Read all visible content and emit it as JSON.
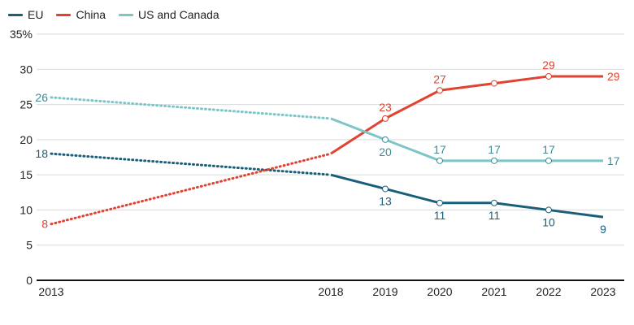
{
  "chart_data": {
    "type": "line",
    "title": "",
    "xlabel": "",
    "ylabel": "",
    "ylim": [
      0,
      35
    ],
    "yticks": [
      0,
      5,
      10,
      15,
      20,
      25,
      30,
      35
    ],
    "ytick_labels": [
      "0",
      "5",
      "10",
      "15",
      "20",
      "25",
      "30",
      "35%"
    ],
    "x": [
      2013,
      2018,
      2019,
      2020,
      2021,
      2022,
      2023
    ],
    "x_labels": [
      "2013",
      "2018",
      "2019",
      "2020",
      "2021",
      "2022",
      "2023"
    ],
    "grid": true,
    "legend_placement": "top-left",
    "series": [
      {
        "name": "EU",
        "color": "#1a5f7a",
        "points": [
          [
            2013,
            18
          ],
          [
            2018,
            15
          ],
          [
            2019,
            13
          ],
          [
            2020,
            11
          ],
          [
            2021,
            11
          ],
          [
            2022,
            10
          ],
          [
            2023,
            9
          ]
        ],
        "labels": [
          "18",
          "",
          "13",
          "11",
          "11",
          "10",
          "9"
        ],
        "label_pos": [
          "left",
          "none",
          "below",
          "below",
          "below",
          "below",
          "below"
        ]
      },
      {
        "name": "China",
        "color": "#e0432f",
        "points": [
          [
            2013,
            8
          ],
          [
            2018,
            18
          ],
          [
            2019,
            23
          ],
          [
            2020,
            27
          ],
          [
            2021,
            28
          ],
          [
            2022,
            29
          ],
          [
            2023,
            29
          ]
        ],
        "labels": [
          "8",
          "",
          "23",
          "27",
          "",
          "29",
          "29"
        ],
        "label_pos": [
          "left",
          "none",
          "above",
          "above",
          "none",
          "above",
          "right"
        ]
      },
      {
        "name": "US and Canada",
        "color": "#7cc5c8",
        "label_color": "#3e8c97",
        "points": [
          [
            2013,
            26
          ],
          [
            2018,
            23
          ],
          [
            2019,
            20
          ],
          [
            2020,
            17
          ],
          [
            2021,
            17
          ],
          [
            2022,
            17
          ],
          [
            2023,
            17
          ]
        ],
        "labels": [
          "26",
          "",
          "20",
          "17",
          "17",
          "17",
          "17"
        ],
        "label_pos": [
          "left",
          "none",
          "below",
          "above",
          "above",
          "above",
          "right"
        ]
      }
    ],
    "dotted_until": 2018,
    "markers_on": [
      2019,
      2020,
      2021,
      2022
    ]
  }
}
